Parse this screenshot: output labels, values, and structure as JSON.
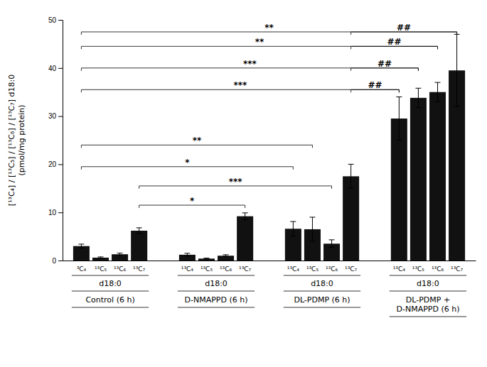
{
  "chart_data": {
    "type": "bar",
    "categories": [
      "Control (6 h)",
      "D-NMAPPD (6 h)",
      "DL-PDMP (6 h)",
      "DL-PDMP +\nD-NMAPPD (6 h)"
    ],
    "sub_labels": [
      [
        "³C₄",
        "¹³C₅",
        "¹³C₆",
        "¹³C₇"
      ],
      [
        "¹³C₄",
        "¹³C₅",
        "¹³C₆",
        "¹³C₇"
      ],
      [
        "¹³C₄",
        "¹³C₅",
        "¹³C₆",
        "¹³C₇"
      ],
      [
        "¹³C₄",
        "¹³C₅",
        "¹³C₆",
        "¹³C₇"
      ]
    ],
    "row_labels": [
      "d18:0",
      "d18:0",
      "d18:0",
      "d18:0"
    ],
    "values": [
      [
        3.0,
        0.6,
        1.3,
        6.2
      ],
      [
        1.2,
        0.4,
        1.0,
        9.2
      ],
      [
        6.6,
        6.5,
        3.5,
        17.5
      ],
      [
        29.5,
        33.8,
        35.0,
        39.5
      ]
    ],
    "errors": [
      [
        0.4,
        0.15,
        0.25,
        0.6
      ],
      [
        0.3,
        0.1,
        0.2,
        0.7
      ],
      [
        1.5,
        2.5,
        0.8,
        2.5
      ],
      [
        4.5,
        2.0,
        2.0,
        7.5
      ]
    ],
    "color": "#111111",
    "ylabel": "[¹³C₄] / [¹³C₅] / [¹³C₆] / [¹³C₇] d18:0\n(pmol/mg protein)",
    "ylim": [
      0,
      50
    ],
    "yticks": [
      0,
      10,
      20,
      30,
      40,
      50
    ],
    "grid": false,
    "brackets": [
      {
        "from_group": 0,
        "from_bar": 3,
        "to_group": 1,
        "to_bar": 3,
        "label": "*",
        "y": 11.5
      },
      {
        "from_group": 0,
        "from_bar": 3,
        "to_group": 2,
        "to_bar": 2,
        "label": "***",
        "y": 15.5
      },
      {
        "from_group": 0,
        "from_bar": 0,
        "to_group": 2,
        "to_bar": 0,
        "label": "*",
        "y": 19.5
      },
      {
        "from_group": 0,
        "from_bar": 0,
        "to_group": 2,
        "to_bar": 1,
        "label": "**",
        "y": 24.0
      },
      {
        "from_group": 0,
        "from_bar": 0,
        "to_group": 3,
        "to_bar": 0,
        "label": "***",
        "y": 35.5
      },
      {
        "from_group": 0,
        "from_bar": 0,
        "to_group": 3,
        "to_bar": 1,
        "label": "***",
        "y": 40.0
      },
      {
        "from_group": 0,
        "from_bar": 0,
        "to_group": 3,
        "to_bar": 2,
        "label": "**",
        "y": 44.5
      },
      {
        "from_group": 0,
        "from_bar": 0,
        "to_group": 3,
        "to_bar": 3,
        "label": "**",
        "y": 47.5
      },
      {
        "from_group": 2,
        "from_bar": 3,
        "to_group": 3,
        "to_bar": 0,
        "label": "##",
        "y": 35.5
      },
      {
        "from_group": 2,
        "from_bar": 3,
        "to_group": 3,
        "to_bar": 1,
        "label": "##",
        "y": 40.0
      },
      {
        "from_group": 2,
        "from_bar": 3,
        "to_group": 3,
        "to_bar": 2,
        "label": "##",
        "y": 44.5
      },
      {
        "from_group": 2,
        "from_bar": 3,
        "to_group": 3,
        "to_bar": 3,
        "label": "##",
        "y": 47.5
      }
    ]
  }
}
